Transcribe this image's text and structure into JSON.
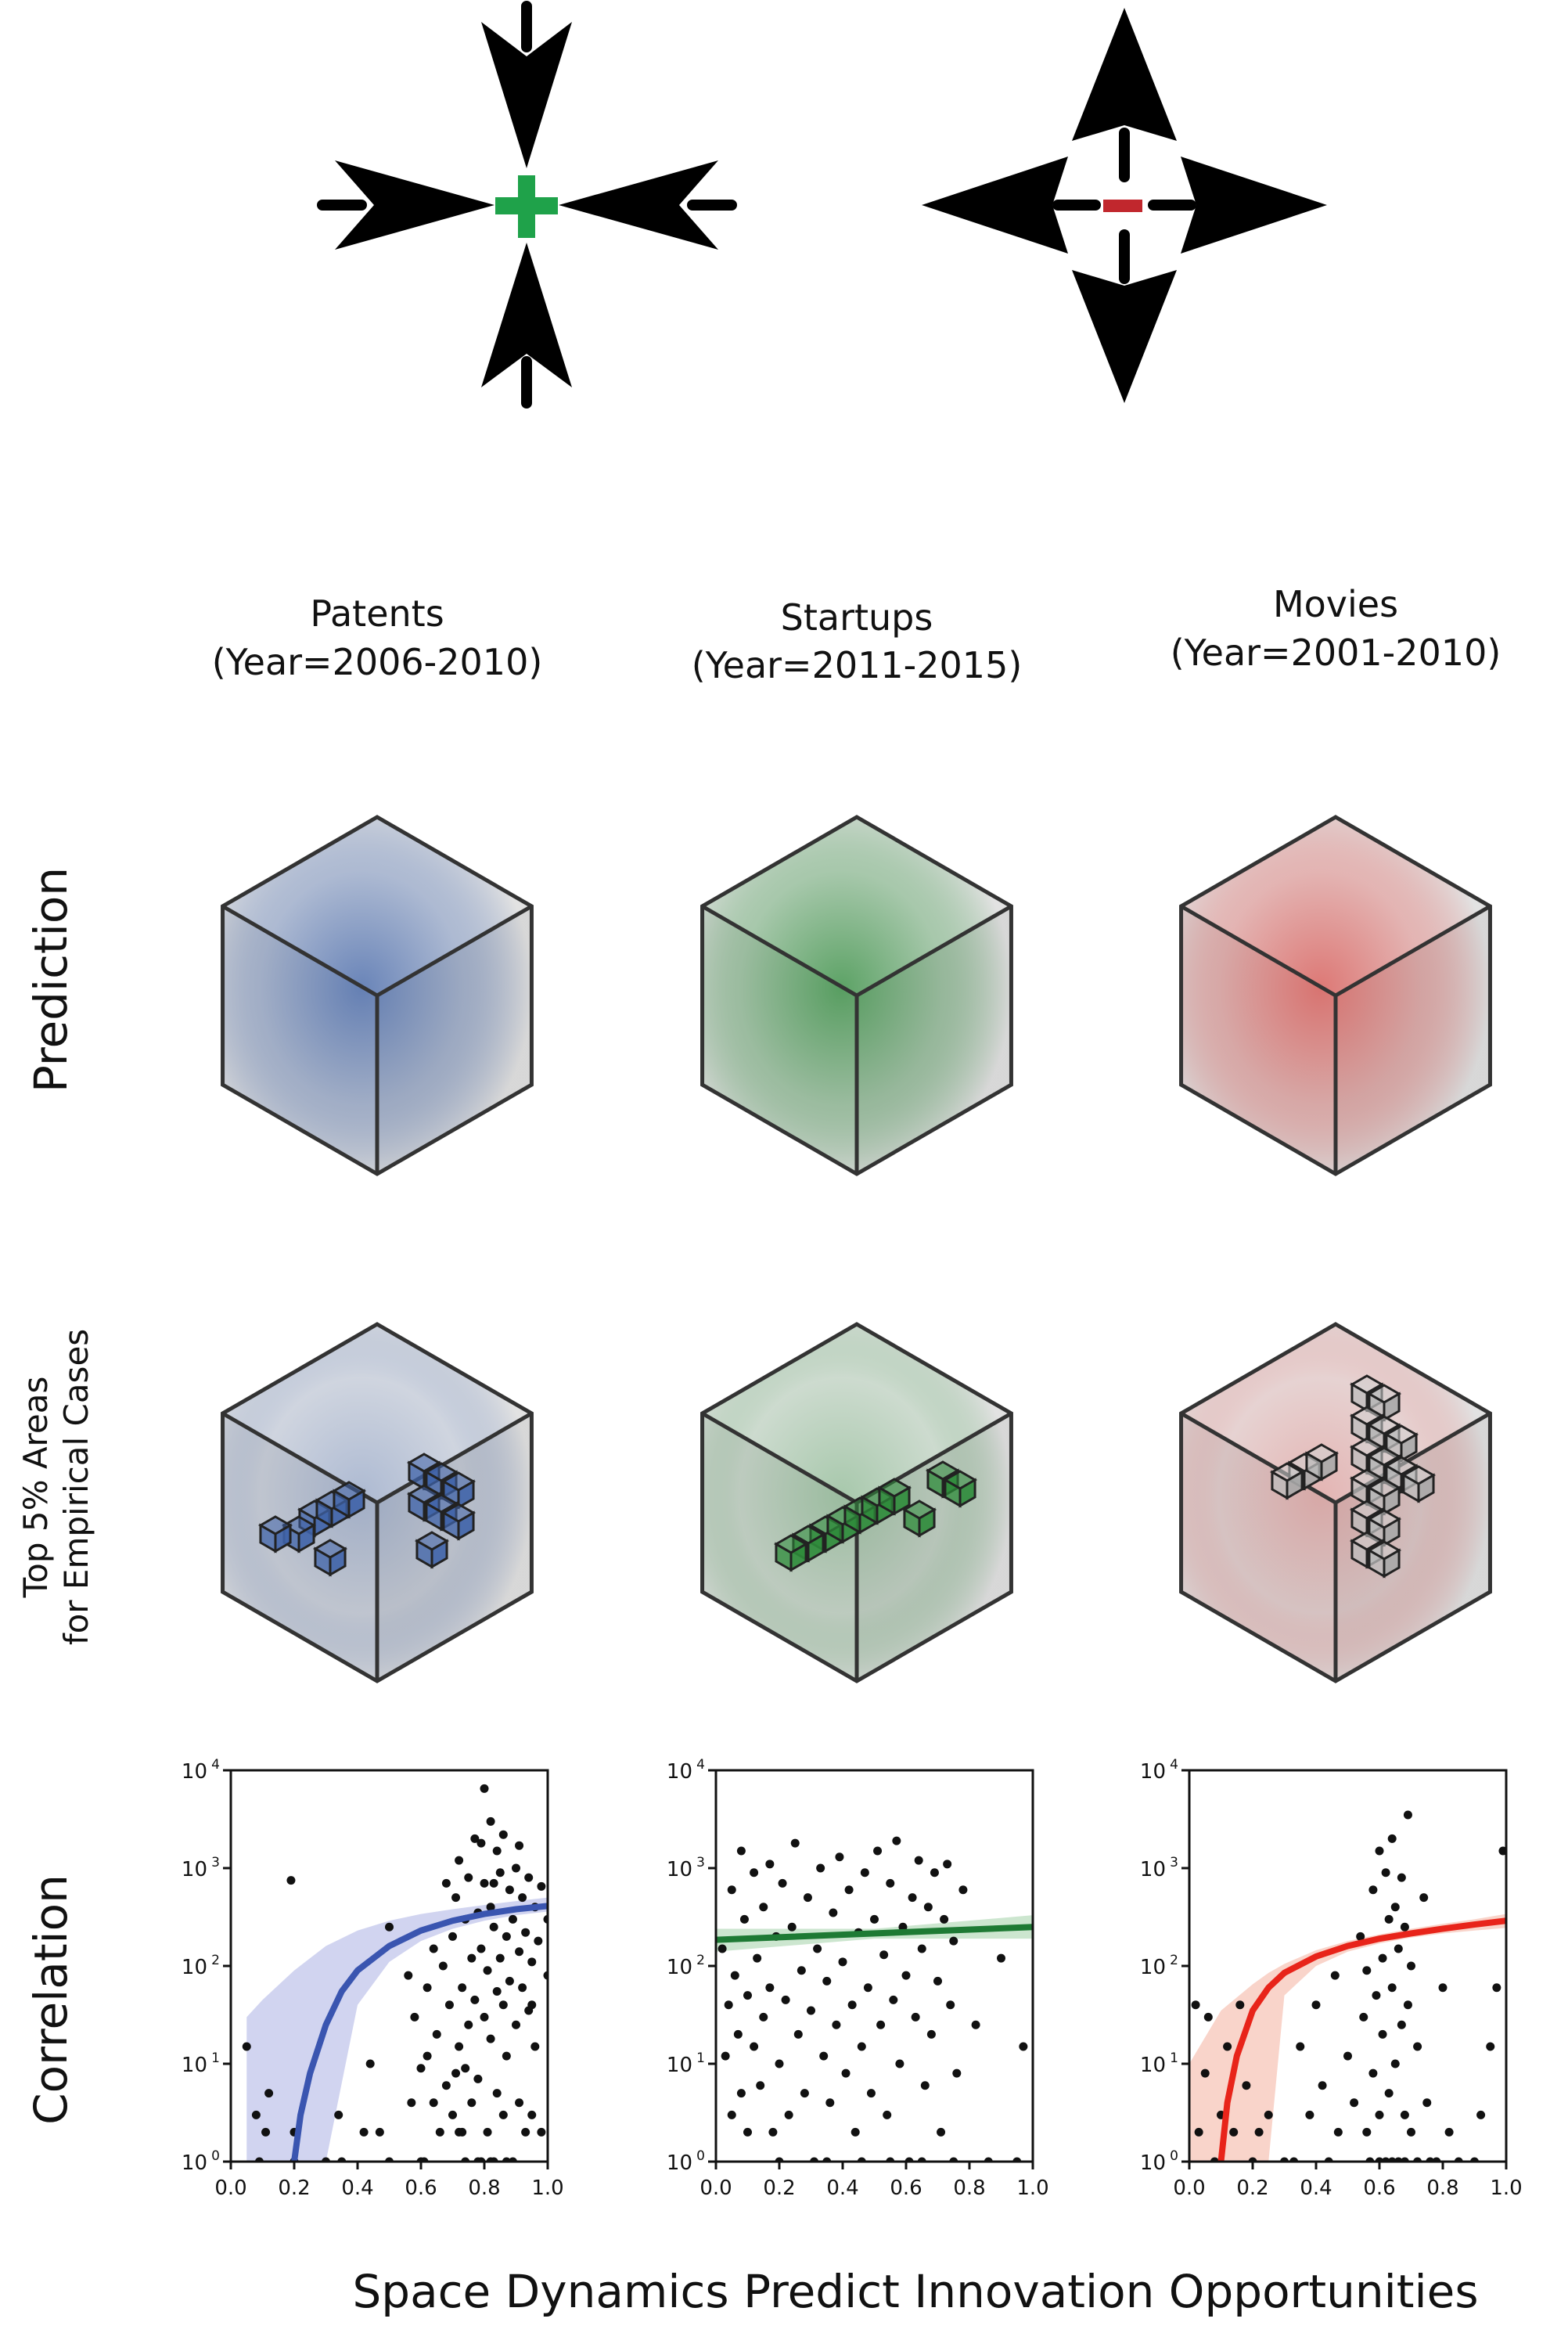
{
  "figure_title": "Space Dynamics Predict Innovation Opportunities",
  "row_labels": {
    "prediction": "Prediction",
    "top5_line1": "Top 5% Areas",
    "top5_line2": "for Empirical Cases",
    "correlation": "Correlation"
  },
  "symbols": {
    "plus_color": "#1fa24a",
    "minus_color": "#c1272d"
  },
  "columns": [
    {
      "name": "Patents",
      "years": "(Year=2006-2010)",
      "color": "#3f63a8"
    },
    {
      "name": "Startups",
      "years": "(Year=2011-2015)",
      "color": "#2e8b3a"
    },
    {
      "name": "Movies",
      "years": "(Year=2001-2010)",
      "color": "#d9534f"
    }
  ],
  "chart_data": [
    {
      "type": "scatter",
      "title": "Patents",
      "xlabel": "",
      "ylabel": "",
      "xlim": [
        0.0,
        1.0
      ],
      "ylim": [
        1,
        10000
      ],
      "yscale": "log",
      "xticks": [
        "0.0",
        "0.2",
        "0.4",
        "0.6",
        "0.8",
        "1.0"
      ],
      "yticks": [
        "10^0",
        "10^1",
        "10^2",
        "10^3",
        "10^4"
      ],
      "fit_color": "#3a55b0",
      "band_color": "#c5c9ec",
      "fit": {
        "x": [
          0.2,
          0.22,
          0.25,
          0.3,
          0.35,
          0.4,
          0.5,
          0.6,
          0.7,
          0.8,
          0.9,
          1.0
        ],
        "y": [
          1,
          3,
          8,
          25,
          55,
          90,
          160,
          230,
          290,
          340,
          380,
          410
        ]
      },
      "band": {
        "x": [
          0.05,
          0.1,
          0.2,
          0.3,
          0.4,
          0.5,
          0.6,
          0.7,
          0.8,
          0.9,
          1.0
        ],
        "lower": [
          1,
          1,
          1,
          1,
          40,
          110,
          180,
          240,
          290,
          330,
          360
        ],
        "upper": [
          30,
          45,
          90,
          160,
          230,
          290,
          340,
          380,
          420,
          460,
          500
        ]
      },
      "points": [
        [
          0.19,
          750
        ],
        [
          0.05,
          15
        ],
        [
          0.08,
          3
        ],
        [
          0.12,
          5
        ],
        [
          0.11,
          2
        ],
        [
          0.09,
          1
        ],
        [
          0.2,
          2
        ],
        [
          0.2,
          1
        ],
        [
          0.3,
          1
        ],
        [
          0.34,
          3
        ],
        [
          0.35,
          1
        ],
        [
          0.42,
          2
        ],
        [
          0.44,
          10
        ],
        [
          0.47,
          2
        ],
        [
          0.5,
          250
        ],
        [
          0.5,
          1
        ],
        [
          0.56,
          80
        ],
        [
          0.57,
          4
        ],
        [
          0.58,
          30
        ],
        [
          0.6,
          1
        ],
        [
          0.61,
          1
        ],
        [
          0.62,
          12
        ],
        [
          0.62,
          60
        ],
        [
          0.64,
          4
        ],
        [
          0.65,
          20
        ],
        [
          0.66,
          2
        ],
        [
          0.67,
          100
        ],
        [
          0.68,
          6
        ],
        [
          0.69,
          40
        ],
        [
          0.7,
          3
        ],
        [
          0.7,
          200
        ],
        [
          0.71,
          8
        ],
        [
          0.71,
          500
        ],
        [
          0.72,
          15
        ],
        [
          0.72,
          1200
        ],
        [
          0.73,
          2
        ],
        [
          0.73,
          60
        ],
        [
          0.74,
          300
        ],
        [
          0.74,
          9
        ],
        [
          0.75,
          25
        ],
        [
          0.75,
          800
        ],
        [
          0.76,
          4
        ],
        [
          0.76,
          120
        ],
        [
          0.77,
          2000
        ],
        [
          0.77,
          45
        ],
        [
          0.78,
          7
        ],
        [
          0.78,
          350
        ],
        [
          0.79,
          1
        ],
        [
          0.79,
          150
        ],
        [
          0.8,
          6500
        ],
        [
          0.8,
          30
        ],
        [
          0.8,
          700
        ],
        [
          0.81,
          2
        ],
        [
          0.81,
          90
        ],
        [
          0.82,
          3000
        ],
        [
          0.82,
          18
        ],
        [
          0.82,
          400
        ],
        [
          0.83,
          1
        ],
        [
          0.83,
          250
        ],
        [
          0.84,
          1500
        ],
        [
          0.84,
          55
        ],
        [
          0.84,
          5
        ],
        [
          0.85,
          120
        ],
        [
          0.85,
          900
        ],
        [
          0.86,
          3
        ],
        [
          0.86,
          40
        ],
        [
          0.86,
          2200
        ],
        [
          0.87,
          200
        ],
        [
          0.87,
          12
        ],
        [
          0.88,
          600
        ],
        [
          0.88,
          70
        ],
        [
          0.89,
          1
        ],
        [
          0.89,
          300
        ],
        [
          0.9,
          25
        ],
        [
          0.9,
          1000
        ],
        [
          0.91,
          140
        ],
        [
          0.91,
          4
        ],
        [
          0.92,
          500
        ],
        [
          0.92,
          60
        ],
        [
          0.93,
          2
        ],
        [
          0.93,
          220
        ],
        [
          0.94,
          35
        ],
        [
          0.94,
          800
        ],
        [
          0.95,
          110
        ],
        [
          0.95,
          3
        ],
        [
          0.96,
          400
        ],
        [
          0.96,
          15
        ],
        [
          0.97,
          180
        ],
        [
          0.98,
          2
        ],
        [
          0.98,
          650
        ],
        [
          1.0,
          300
        ],
        [
          1.0,
          80
        ],
        [
          0.6,
          9
        ],
        [
          0.64,
          150
        ],
        [
          0.68,
          700
        ],
        [
          0.72,
          2
        ],
        [
          0.79,
          1800
        ],
        [
          0.83,
          700
        ],
        [
          0.87,
          1
        ],
        [
          0.91,
          1700
        ],
        [
          0.95,
          40
        ],
        [
          0.74,
          1
        ],
        [
          0.78,
          1
        ],
        [
          0.82,
          1
        ]
      ]
    },
    {
      "type": "scatter",
      "title": "Startups",
      "xlabel": "",
      "ylabel": "",
      "xlim": [
        0.0,
        1.0
      ],
      "ylim": [
        1,
        10000
      ],
      "yscale": "log",
      "xticks": [
        "0.0",
        "0.2",
        "0.4",
        "0.6",
        "0.8",
        "1.0"
      ],
      "yticks": [
        "10^0",
        "10^1",
        "10^2",
        "10^3",
        "10^4"
      ],
      "fit_color": "#1e7a34",
      "band_color": "#bfe0c3",
      "fit": {
        "x": [
          0.0,
          1.0
        ],
        "y": [
          185,
          250
        ]
      },
      "band": {
        "x": [
          0.0,
          0.5,
          1.0
        ],
        "lower": [
          140,
          190,
          190
        ],
        "upper": [
          240,
          240,
          330
        ]
      },
      "points": [
        [
          0.02,
          150
        ],
        [
          0.03,
          12
        ],
        [
          0.04,
          40
        ],
        [
          0.05,
          3
        ],
        [
          0.05,
          600
        ],
        [
          0.06,
          80
        ],
        [
          0.07,
          20
        ],
        [
          0.08,
          1500
        ],
        [
          0.08,
          5
        ],
        [
          0.09,
          300
        ],
        [
          0.1,
          50
        ],
        [
          0.1,
          2
        ],
        [
          0.12,
          900
        ],
        [
          0.12,
          15
        ],
        [
          0.13,
          120
        ],
        [
          0.14,
          6
        ],
        [
          0.15,
          400
        ],
        [
          0.15,
          30
        ],
        [
          0.17,
          1100
        ],
        [
          0.17,
          60
        ],
        [
          0.18,
          2
        ],
        [
          0.19,
          200
        ],
        [
          0.2,
          10
        ],
        [
          0.21,
          700
        ],
        [
          0.22,
          45
        ],
        [
          0.23,
          3
        ],
        [
          0.24,
          250
        ],
        [
          0.25,
          1800
        ],
        [
          0.26,
          20
        ],
        [
          0.27,
          90
        ],
        [
          0.28,
          5
        ],
        [
          0.29,
          500
        ],
        [
          0.3,
          35
        ],
        [
          0.31,
          1
        ],
        [
          0.32,
          150
        ],
        [
          0.33,
          1000
        ],
        [
          0.34,
          12
        ],
        [
          0.35,
          70
        ],
        [
          0.36,
          4
        ],
        [
          0.37,
          350
        ],
        [
          0.38,
          25
        ],
        [
          0.39,
          1300
        ],
        [
          0.4,
          110
        ],
        [
          0.41,
          8
        ],
        [
          0.42,
          600
        ],
        [
          0.43,
          40
        ],
        [
          0.44,
          2
        ],
        [
          0.45,
          220
        ],
        [
          0.46,
          15
        ],
        [
          0.47,
          900
        ],
        [
          0.48,
          60
        ],
        [
          0.49,
          5
        ],
        [
          0.5,
          300
        ],
        [
          0.51,
          1500
        ],
        [
          0.52,
          25
        ],
        [
          0.53,
          130
        ],
        [
          0.54,
          3
        ],
        [
          0.55,
          700
        ],
        [
          0.56,
          45
        ],
        [
          0.57,
          1900
        ],
        [
          0.58,
          10
        ],
        [
          0.59,
          250
        ],
        [
          0.6,
          80
        ],
        [
          0.61,
          1
        ],
        [
          0.62,
          500
        ],
        [
          0.63,
          30
        ],
        [
          0.64,
          1200
        ],
        [
          0.65,
          150
        ],
        [
          0.66,
          6
        ],
        [
          0.67,
          400
        ],
        [
          0.68,
          20
        ],
        [
          0.69,
          900
        ],
        [
          0.7,
          70
        ],
        [
          0.71,
          2
        ],
        [
          0.72,
          300
        ],
        [
          0.73,
          1100
        ],
        [
          0.74,
          40
        ],
        [
          0.75,
          180
        ],
        [
          0.76,
          8
        ],
        [
          0.78,
          600
        ],
        [
          0.82,
          25
        ],
        [
          0.86,
          1
        ],
        [
          0.9,
          120
        ],
        [
          0.95,
          1
        ],
        [
          0.97,
          15
        ],
        [
          0.2,
          1
        ],
        [
          0.35,
          1
        ],
        [
          0.46,
          1
        ],
        [
          0.55,
          1
        ],
        [
          0.65,
          1
        ],
        [
          0.75,
          1
        ]
      ]
    },
    {
      "type": "scatter",
      "title": "Movies",
      "xlabel": "",
      "ylabel": "",
      "xlim": [
        0.0,
        1.0
      ],
      "ylim": [
        1,
        10000
      ],
      "yscale": "log",
      "xticks": [
        "0.0",
        "0.2",
        "0.4",
        "0.6",
        "0.8",
        "1.0"
      ],
      "yticks": [
        "10^0",
        "10^1",
        "10^2",
        "10^3",
        "10^4"
      ],
      "fit_color": "#e8241a",
      "band_color": "#f7c9bd",
      "fit": {
        "x": [
          0.1,
          0.12,
          0.15,
          0.2,
          0.25,
          0.3,
          0.4,
          0.5,
          0.6,
          0.7,
          0.8,
          0.9,
          1.0
        ],
        "y": [
          1,
          4,
          12,
          35,
          60,
          85,
          125,
          160,
          190,
          215,
          240,
          265,
          290
        ]
      },
      "band": {
        "x": [
          0.0,
          0.1,
          0.2,
          0.25,
          0.3,
          0.4,
          0.5,
          0.6,
          0.7,
          0.8,
          0.9,
          1.0
        ],
        "lower": [
          1,
          1,
          1,
          1,
          50,
          100,
          140,
          170,
          195,
          215,
          230,
          245
        ],
        "upper": [
          10,
          35,
          65,
          85,
          105,
          145,
          180,
          210,
          240,
          270,
          300,
          340
        ]
      },
      "points": [
        [
          0.02,
          40
        ],
        [
          0.03,
          2
        ],
        [
          0.05,
          8
        ],
        [
          0.06,
          30
        ],
        [
          0.08,
          1
        ],
        [
          0.1,
          3
        ],
        [
          0.12,
          15
        ],
        [
          0.14,
          2
        ],
        [
          0.16,
          40
        ],
        [
          0.18,
          6
        ],
        [
          0.2,
          1
        ],
        [
          0.22,
          2
        ],
        [
          0.25,
          3
        ],
        [
          0.3,
          1
        ],
        [
          0.33,
          1
        ],
        [
          0.35,
          15
        ],
        [
          0.38,
          3
        ],
        [
          0.4,
          40
        ],
        [
          0.42,
          6
        ],
        [
          0.44,
          1
        ],
        [
          0.46,
          80
        ],
        [
          0.47,
          2
        ],
        [
          0.5,
          12
        ],
        [
          0.52,
          4
        ],
        [
          0.54,
          200
        ],
        [
          0.55,
          30
        ],
        [
          0.56,
          2
        ],
        [
          0.57,
          1
        ],
        [
          0.58,
          600
        ],
        [
          0.58,
          8
        ],
        [
          0.59,
          50
        ],
        [
          0.6,
          1500
        ],
        [
          0.6,
          3
        ],
        [
          0.61,
          120
        ],
        [
          0.61,
          20
        ],
        [
          0.62,
          900
        ],
        [
          0.62,
          1
        ],
        [
          0.63,
          300
        ],
        [
          0.63,
          5
        ],
        [
          0.64,
          60
        ],
        [
          0.64,
          2000
        ],
        [
          0.65,
          10
        ],
        [
          0.65,
          400
        ],
        [
          0.66,
          1
        ],
        [
          0.66,
          150
        ],
        [
          0.67,
          25
        ],
        [
          0.67,
          800
        ],
        [
          0.68,
          3
        ],
        [
          0.68,
          250
        ],
        [
          0.69,
          3500
        ],
        [
          0.69,
          40
        ],
        [
          0.7,
          2
        ],
        [
          0.7,
          100
        ],
        [
          0.72,
          15
        ],
        [
          0.74,
          500
        ],
        [
          0.75,
          4
        ],
        [
          0.78,
          1
        ],
        [
          0.8,
          60
        ],
        [
          0.82,
          2
        ],
        [
          0.85,
          1
        ],
        [
          0.9,
          1
        ],
        [
          0.92,
          3
        ],
        [
          0.95,
          15
        ],
        [
          0.97,
          60
        ],
        [
          0.99,
          1500
        ],
        [
          0.6,
          1
        ],
        [
          0.64,
          1
        ],
        [
          0.68,
          1
        ],
        [
          0.72,
          1
        ],
        [
          0.76,
          1
        ],
        [
          0.56,
          90
        ]
      ]
    }
  ]
}
